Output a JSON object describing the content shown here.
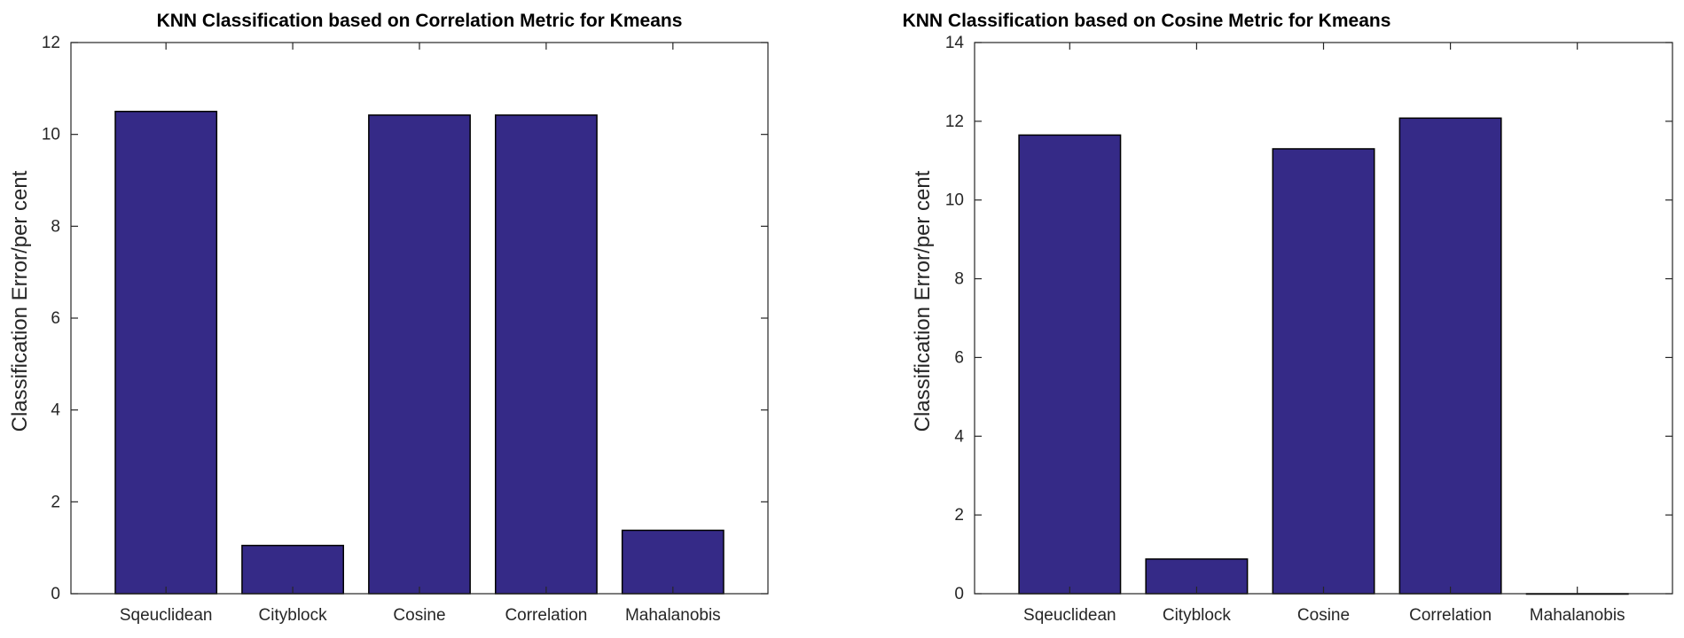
{
  "chart_data": [
    {
      "type": "bar",
      "title": "KNN Classification based on Correlation Metric for Kmeans",
      "xlabel": "",
      "ylabel": "Classification Error/per cent",
      "categories": [
        "Sqeuclidean",
        "Cityblock",
        "Cosine",
        "Correlation",
        "Mahalanobis"
      ],
      "values": [
        10.5,
        1.05,
        10.42,
        10.42,
        1.38
      ],
      "ylim": [
        0,
        12
      ],
      "yticks": [
        0,
        2,
        4,
        6,
        8,
        10,
        12
      ],
      "grid": false,
      "bar_color": "#352a87"
    },
    {
      "type": "bar",
      "title": "KNN Classification based on Cosine Metric for Kmeans",
      "xlabel": "",
      "ylabel": "Classification Error/per cent",
      "categories": [
        "Sqeuclidean",
        "Cityblock",
        "Cosine",
        "Correlation",
        "Mahalanobis"
      ],
      "values": [
        11.65,
        0.88,
        11.3,
        12.08,
        0
      ],
      "ylim": [
        0,
        14
      ],
      "yticks": [
        0,
        2,
        4,
        6,
        8,
        10,
        12,
        14
      ],
      "grid": false,
      "bar_color": "#352a87"
    }
  ]
}
